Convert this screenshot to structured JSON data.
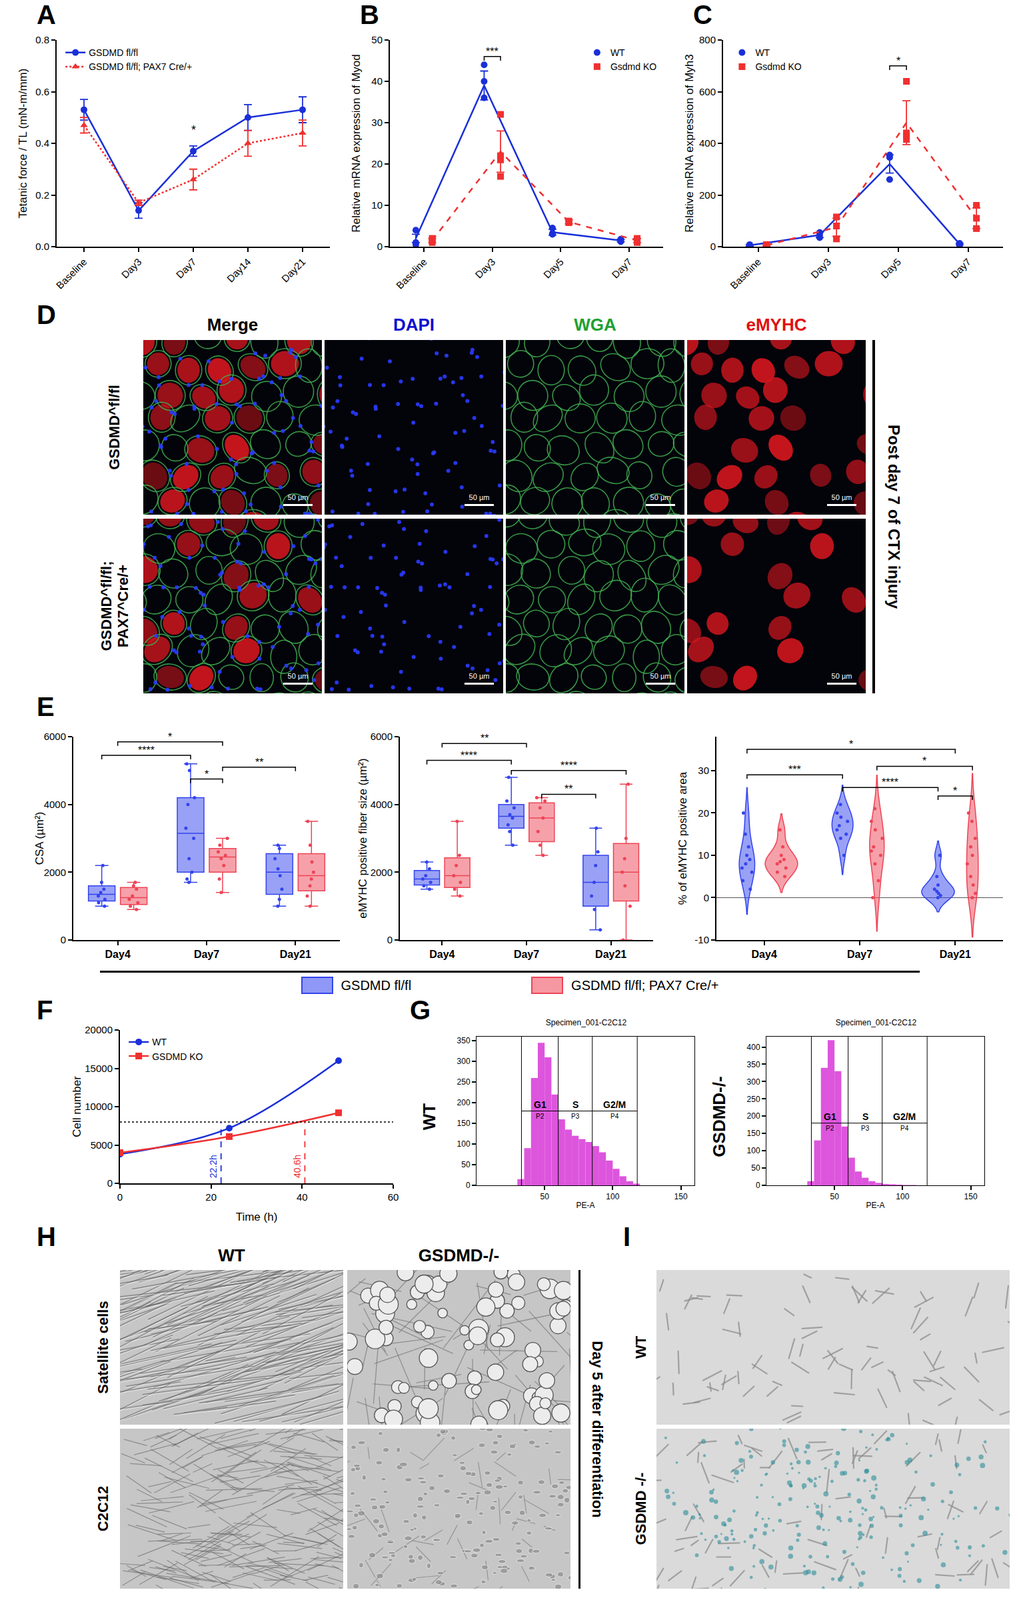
{
  "panel_letters": [
    "A",
    "B",
    "C",
    "D",
    "E",
    "F",
    "G",
    "H",
    "I"
  ],
  "chart_data": [
    {
      "type": "line",
      "categories": [
        "Baseline",
        "Day3",
        "Day7",
        "Day14",
        "Day21"
      ],
      "ylabel": "Tetanic force / TL (mN-m/mm)",
      "ylim": [
        0,
        0.8
      ],
      "yticks": [
        {
          "value": 0,
          "label": "0.0"
        },
        0.2,
        0.4,
        0.6,
        0.8
      ],
      "legend": "top left",
      "series": [
        {
          "name": "GSDMD fl/fl",
          "color": "#1a2fd8",
          "marker": "circle",
          "line_style": "solid",
          "values": [
            0.53,
            0.14,
            0.37,
            0.5,
            0.53
          ],
          "errors": [
            0.04,
            0.03,
            0.02,
            0.05,
            0.05
          ]
        },
        {
          "name": "GSDMD fl/fl; PAX7 Cre/+",
          "color": "#f03030",
          "marker": "triangle",
          "line_style": "dotted",
          "values": [
            0.47,
            0.17,
            0.26,
            0.4,
            0.44
          ],
          "errors": [
            0.03,
            0.01,
            0.04,
            0.05,
            0.05
          ]
        }
      ],
      "annotations": [
        {
          "x": "Day7",
          "y": 0.42,
          "text": "*"
        }
      ]
    },
    {
      "type": "line",
      "categories": [
        "Baseline",
        "Day3",
        "Day5",
        "Day7"
      ],
      "ylabel": "Relative mRNA expression of Myod",
      "ylim": [
        0,
        50
      ],
      "yticks": [
        0,
        10,
        20,
        30,
        40,
        50
      ],
      "legend": "top right",
      "series": [
        {
          "name": "WT",
          "color": "#1a2fd8",
          "marker": "circle",
          "line_style": "solid",
          "values": [
            2,
            39,
            3.5,
            1.5
          ],
          "errors": [
            1,
            3.5,
            0.7,
            0.3
          ],
          "points": [
            [
              1,
              4,
              0.5
            ],
            [
              36,
              40,
              44
            ],
            [
              3,
              3.2,
              4.5
            ],
            [
              1.5,
              1.8,
              1.2
            ]
          ]
        },
        {
          "name": "Gsdmd KO",
          "color": "#f03030",
          "marker": "square",
          "line_style": "dashed",
          "values": [
            1.5,
            23,
            6,
            1.5
          ],
          "errors": [
            0.5,
            5,
            0.5,
            0.5
          ],
          "points": [
            [
              1,
              1.5,
              2
            ],
            [
              17,
              21,
              22,
              32
            ],
            [
              5.8,
              6,
              6.2
            ],
            [
              1,
              1.5,
              2
            ]
          ]
        }
      ],
      "brackets": [
        {
          "from": {
            "category": "Day3",
            "series": 0
          },
          "to": {
            "category": "Day3",
            "series": 1
          },
          "y": 46,
          "text": "***"
        }
      ]
    },
    {
      "type": "line",
      "categories": [
        "Baseline",
        "Day3",
        "Day5",
        "Day7"
      ],
      "ylabel": "Relative mRNA expression of Myh3",
      "ylim": [
        0,
        800
      ],
      "yticks": [
        0,
        200,
        400,
        600,
        800
      ],
      "legend": "top left",
      "series": [
        {
          "name": "WT",
          "color": "#1a2fd8",
          "marker": "circle",
          "line_style": "solid",
          "values": [
            5,
            45,
            320,
            10
          ],
          "errors": [
            3,
            10,
            35,
            3
          ],
          "points": [
            [
              2,
              5,
              8
            ],
            [
              35,
              45,
              55
            ],
            [
              260,
              345,
              355
            ],
            [
              6,
              10,
              13
            ]
          ]
        },
        {
          "name": "Gsdmd KO",
          "color": "#f03030",
          "marker": "square",
          "line_style": "dashed",
          "values": [
            5,
            75,
            480,
            110
          ],
          "errors": [
            3,
            35,
            85,
            40
          ],
          "points": [
            [
              2,
              5,
              8
            ],
            [
              30,
              80,
              115
            ],
            [
              415,
              430,
              440,
              640
            ],
            [
              70,
              110,
              160
            ]
          ]
        }
      ],
      "brackets": [
        {
          "from": {
            "category": "Day5",
            "series": 0
          },
          "to": {
            "category": "Day5",
            "series": 1
          },
          "y": 700,
          "text": "*"
        }
      ]
    },
    {
      "type": "box",
      "categories": [
        "Day4",
        "Day7",
        "Day21"
      ],
      "ylabel": "CSA (µm²)",
      "ylim": [
        0,
        6000
      ],
      "yticks": [
        0,
        2000,
        4000,
        6000
      ],
      "legend": "bottom",
      "series": [
        {
          "name": "GSDMD fl/fl",
          "color": "#3344ee",
          "values": [
            [
              1000,
              1100,
              1200,
              1300,
              1400,
              1500,
              1700,
              2200
            ],
            [
              1700,
              1800,
              2000,
              2400,
              3000,
              3300,
              4000,
              4200,
              5000,
              5200
            ],
            [
              1000,
              1200,
              1500,
              1900,
              2100,
              2400,
              2700,
              2800
            ]
          ]
        },
        {
          "name": "GSDMD fl/fl; PAX7 Cre/+",
          "color": "#ee4455",
          "values": [
            [
              900,
              1000,
              1100,
              1200,
              1300,
              1500,
              1600,
              1700
            ],
            [
              1400,
              1800,
              2200,
              2400,
              2500,
              2600,
              2800,
              3000
            ],
            [
              1000,
              1300,
              1600,
              1800,
              2000,
              2300,
              2800,
              3500
            ]
          ]
        }
      ],
      "brackets": [
        {
          "from": {
            "category": "Day4"
          },
          "to": {
            "category": "Day7",
            "series": 1
          },
          "y": 5850,
          "text": "*"
        },
        {
          "from": {
            "category": "Day4",
            "series": 0
          },
          "to": {
            "category": "Day7",
            "series": 0
          },
          "y": 5450,
          "text": "****"
        },
        {
          "from": {
            "category": "Day7",
            "series": 1
          },
          "to": {
            "category": "Day21"
          },
          "y": 5100,
          "text": "**"
        },
        {
          "from": {
            "category": "Day7",
            "series": 0
          },
          "to": {
            "category": "Day7",
            "series": 1
          },
          "y": 4750,
          "text": "*"
        }
      ]
    },
    {
      "type": "box",
      "categories": [
        "Day4",
        "Day7",
        "Day21"
      ],
      "ylabel": "eMYHC positive fiber size (µm²)",
      "ylim": [
        0,
        6000
      ],
      "yticks": [
        0,
        2000,
        4000,
        6000
      ],
      "series": [
        {
          "name": "GSDMD fl/fl",
          "color": "#3344ee",
          "values": [
            [
              1500,
              1600,
              1700,
              1800,
              1900,
              2100,
              2300
            ],
            [
              2800,
              3200,
              3400,
              3600,
              3700,
              3900,
              4100,
              4800
            ],
            [
              300,
              900,
              1300,
              1700,
              2200,
              2600,
              3300
            ]
          ]
        },
        {
          "name": "GSDMD fl/fl; PAX7 Cre/+",
          "color": "#ee4455",
          "values": [
            [
              1300,
              1500,
              1700,
              1900,
              2200,
              2500,
              3500
            ],
            [
              2500,
              2800,
              3200,
              3600,
              3900,
              4100,
              4200
            ],
            [
              0,
              1000,
              1600,
              2000,
              2400,
              3000,
              4600
            ]
          ]
        }
      ],
      "brackets": [
        {
          "from": {
            "category": "Day4"
          },
          "to": {
            "category": "Day7"
          },
          "y": 5800,
          "text": "**"
        },
        {
          "from": {
            "category": "Day4",
            "series": 0
          },
          "to": {
            "category": "Day7",
            "series": 0
          },
          "y": 5300,
          "text": "****"
        },
        {
          "from": {
            "category": "Day7",
            "series": 0
          },
          "to": {
            "category": "Day21",
            "series": 1
          },
          "y": 5000,
          "text": "****"
        },
        {
          "from": {
            "category": "Day7",
            "series": 1
          },
          "to": {
            "category": "Day21",
            "series": 0
          },
          "y": 4300,
          "text": "**"
        }
      ]
    },
    {
      "type": "violin",
      "categories": [
        "Day4",
        "Day7",
        "Day21"
      ],
      "ylabel": "% of eMYHC positive area",
      "ylim": [
        -10,
        38
      ],
      "yticks": [
        -10,
        0,
        10,
        20,
        30
      ],
      "series": [
        {
          "name": "GSDMD fl/fl",
          "color": "#3344ee",
          "values": [
            [
              2,
              4,
              6,
              7,
              8,
              9,
              10,
              12,
              15,
              20
            ],
            [
              10,
              14,
              15,
              16,
              17,
              18,
              19,
              20,
              22
            ],
            [
              0,
              0.5,
              1,
              1.5,
              2,
              3,
              5,
              10
            ]
          ]
        },
        {
          "name": "GSDMD fl/fl; PAX7 Cre/+",
          "color": "#ee4455",
          "values": [
            [
              5,
              6,
              7,
              8,
              8.5,
              9,
              10,
              12,
              16
            ],
            [
              0,
              4,
              8,
              10,
              11,
              12,
              14,
              16,
              18,
              21
            ],
            [
              0,
              1,
              3,
              5,
              8,
              10,
              12,
              14,
              18,
              20
            ]
          ]
        }
      ],
      "brackets": [
        {
          "from": {
            "category": "Day4",
            "series": 0
          },
          "to": {
            "category": "Day21"
          },
          "y": 35,
          "text": "*"
        },
        {
          "from": {
            "category": "Day7",
            "series": 1
          },
          "to": {
            "category": "Day21",
            "series": 1
          },
          "y": 31,
          "text": "*"
        },
        {
          "from": {
            "category": "Day4",
            "series": 0
          },
          "to": {
            "category": "Day7",
            "series": 0
          },
          "y": 29,
          "text": "***"
        },
        {
          "from": {
            "category": "Day7",
            "series": 0
          },
          "to": {
            "category": "Day21",
            "series": 0
          },
          "y": 26,
          "text": "****"
        },
        {
          "from": {
            "category": "Day21",
            "series": 0
          },
          "to": {
            "category": "Day21",
            "series": 1
          },
          "y": 24,
          "text": "*"
        }
      ]
    },
    {
      "type": "line",
      "x": [
        0,
        24,
        48
      ],
      "xlabel": "Time (h)",
      "ylabel": "Cell number",
      "xlim": [
        0,
        60
      ],
      "xticks": [
        0,
        20,
        40,
        60
      ],
      "ylim": [
        0,
        20000
      ],
      "yticks": [
        0,
        5000,
        10000,
        15000,
        20000
      ],
      "legend": "top left",
      "series": [
        {
          "name": "WT",
          "color": "#1a2fd8",
          "marker": "circle",
          "line_style": "solid",
          "values": [
            3800,
            7200,
            16000
          ]
        },
        {
          "name": "GSDMD KO",
          "color": "#f03030",
          "marker": "square",
          "line_style": "solid",
          "values": [
            4000,
            6100,
            9200
          ]
        }
      ],
      "reference_lines": {
        "y": 8000,
        "x": [
          {
            "value": 22.2,
            "label": "22.2h",
            "color": "#1a2fd8"
          },
          {
            "value": 40.6,
            "label": "40.6h",
            "color": "#f03030"
          }
        ]
      }
    },
    {
      "type": "histogram",
      "title": "Specimen_001-C2C12",
      "row_label": "WT",
      "xlabel": "PE-A",
      "bins": [
        30,
        35,
        40,
        45,
        50,
        55,
        60,
        65,
        70,
        75,
        80,
        85,
        90,
        95,
        100,
        105,
        110,
        115,
        120
      ],
      "counts": [
        15,
        90,
        260,
        345,
        310,
        220,
        160,
        135,
        120,
        112,
        105,
        95,
        80,
        60,
        40,
        22,
        10,
        4
      ],
      "color": "#dd55dd",
      "xlim": [
        0,
        160
      ],
      "xticks": [
        50,
        100,
        150
      ],
      "ylim": [
        0,
        360
      ],
      "yticks": [
        0,
        50,
        100,
        150,
        200,
        250,
        300,
        350
      ],
      "gates": [
        {
          "name": "G1",
          "label": "P2",
          "x0": 33,
          "x1": 60
        },
        {
          "name": "S",
          "label": "P3",
          "x0": 60,
          "x1": 85
        },
        {
          "name": "G2/M",
          "label": "P4",
          "x0": 85,
          "x1": 118
        }
      ],
      "gate_y": 180
    },
    {
      "type": "histogram",
      "title": "Specimen_001-C2C12",
      "row_label": "GSDMD-/-",
      "xlabel": "PE-A",
      "bins": [
        30,
        35,
        40,
        45,
        50,
        55,
        60,
        65,
        70,
        75,
        80,
        85,
        90,
        95,
        100,
        105,
        110,
        115,
        120
      ],
      "counts": [
        12,
        130,
        340,
        420,
        330,
        170,
        80,
        40,
        22,
        12,
        7,
        4,
        3,
        2,
        1,
        1,
        0,
        0
      ],
      "color": "#dd55dd",
      "xlim": [
        0,
        160
      ],
      "xticks": [
        50,
        100,
        150
      ],
      "ylim": [
        0,
        430
      ],
      "yticks": [
        0,
        50,
        100,
        150,
        200,
        250,
        300,
        350,
        400
      ],
      "gates": [
        {
          "name": "G1",
          "label": "P2",
          "x0": 33,
          "x1": 60
        },
        {
          "name": "S",
          "label": "P3",
          "x0": 60,
          "x1": 85
        },
        {
          "name": "G2/M",
          "label": "P4",
          "x0": 85,
          "x1": 118
        }
      ],
      "gate_y": 180
    }
  ],
  "images": {
    "D": {
      "columns": [
        {
          "text": "Merge",
          "color": "#000000"
        },
        {
          "text": "DAPI",
          "color": "#1010d0"
        },
        {
          "text": "WGA",
          "color": "#20a030"
        },
        {
          "text": "eMYHC",
          "color": "#e01010"
        }
      ],
      "rows": [
        "GSDMD^fl/fl",
        "GSDMD^fl/fl; PAX7^Cre/+"
      ],
      "side_label": "Post day 7 of CTX injury",
      "scale_bar": "50 µm"
    },
    "H": {
      "columns": [
        "WT",
        "GSDMD-/-"
      ],
      "rows": [
        "Satellite cells",
        "C2C12"
      ],
      "side_label": "Day 5 after differentiation"
    },
    "I": {
      "rows": [
        "WT",
        "GSDMD -/-"
      ]
    }
  }
}
